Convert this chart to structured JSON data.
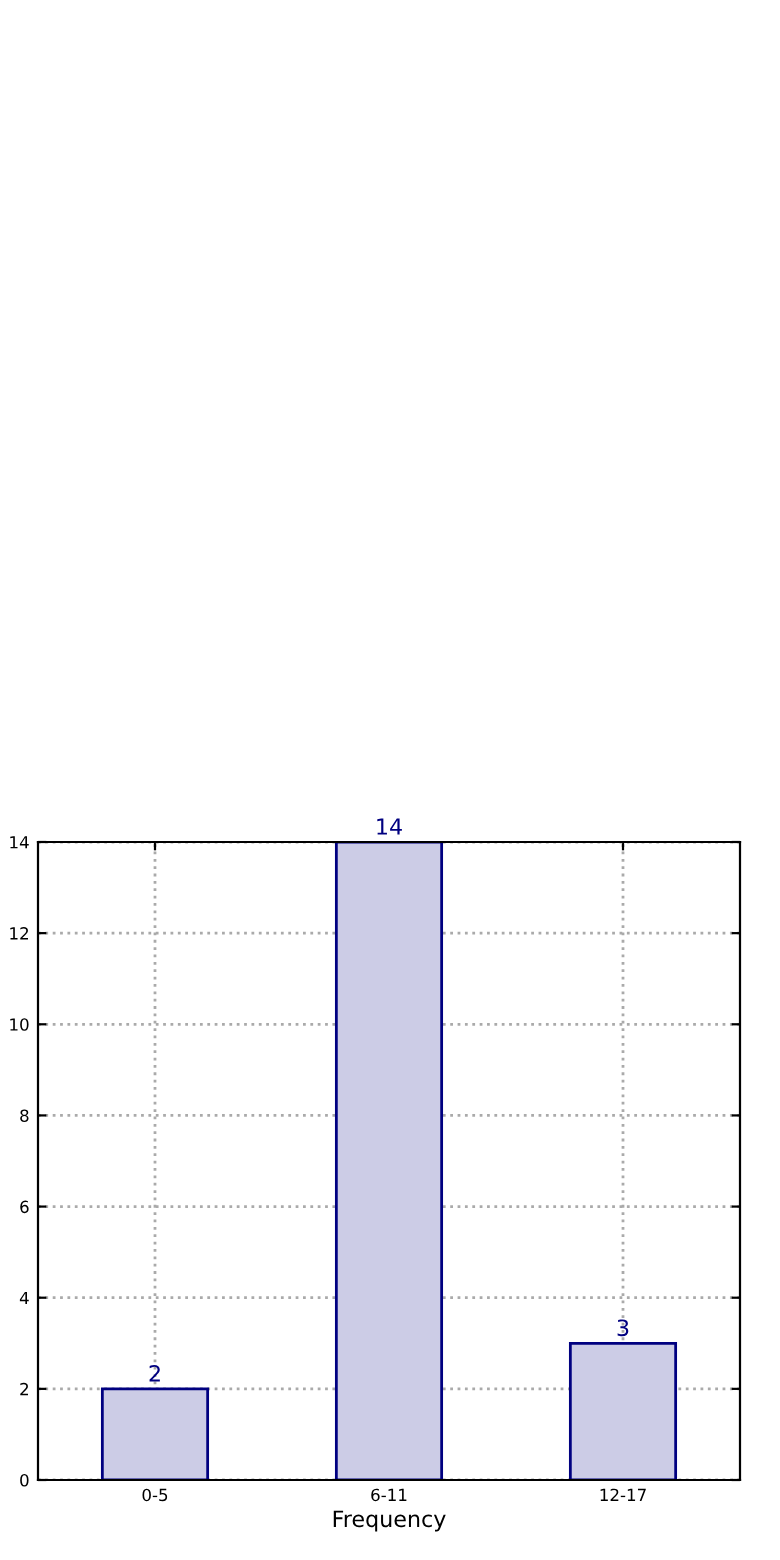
{
  "chart_data": {
    "type": "bar",
    "xlabel": "Frequency",
    "categories": [
      "0-5",
      "6-11",
      "12-17"
    ],
    "values": [
      2,
      14,
      3
    ],
    "color": "#cccce6",
    "ylim": [
      0,
      14
    ],
    "yticks": [
      0,
      2,
      4,
      6,
      8,
      10,
      12,
      14
    ],
    "grid": true,
    "data_labels": true
  }
}
